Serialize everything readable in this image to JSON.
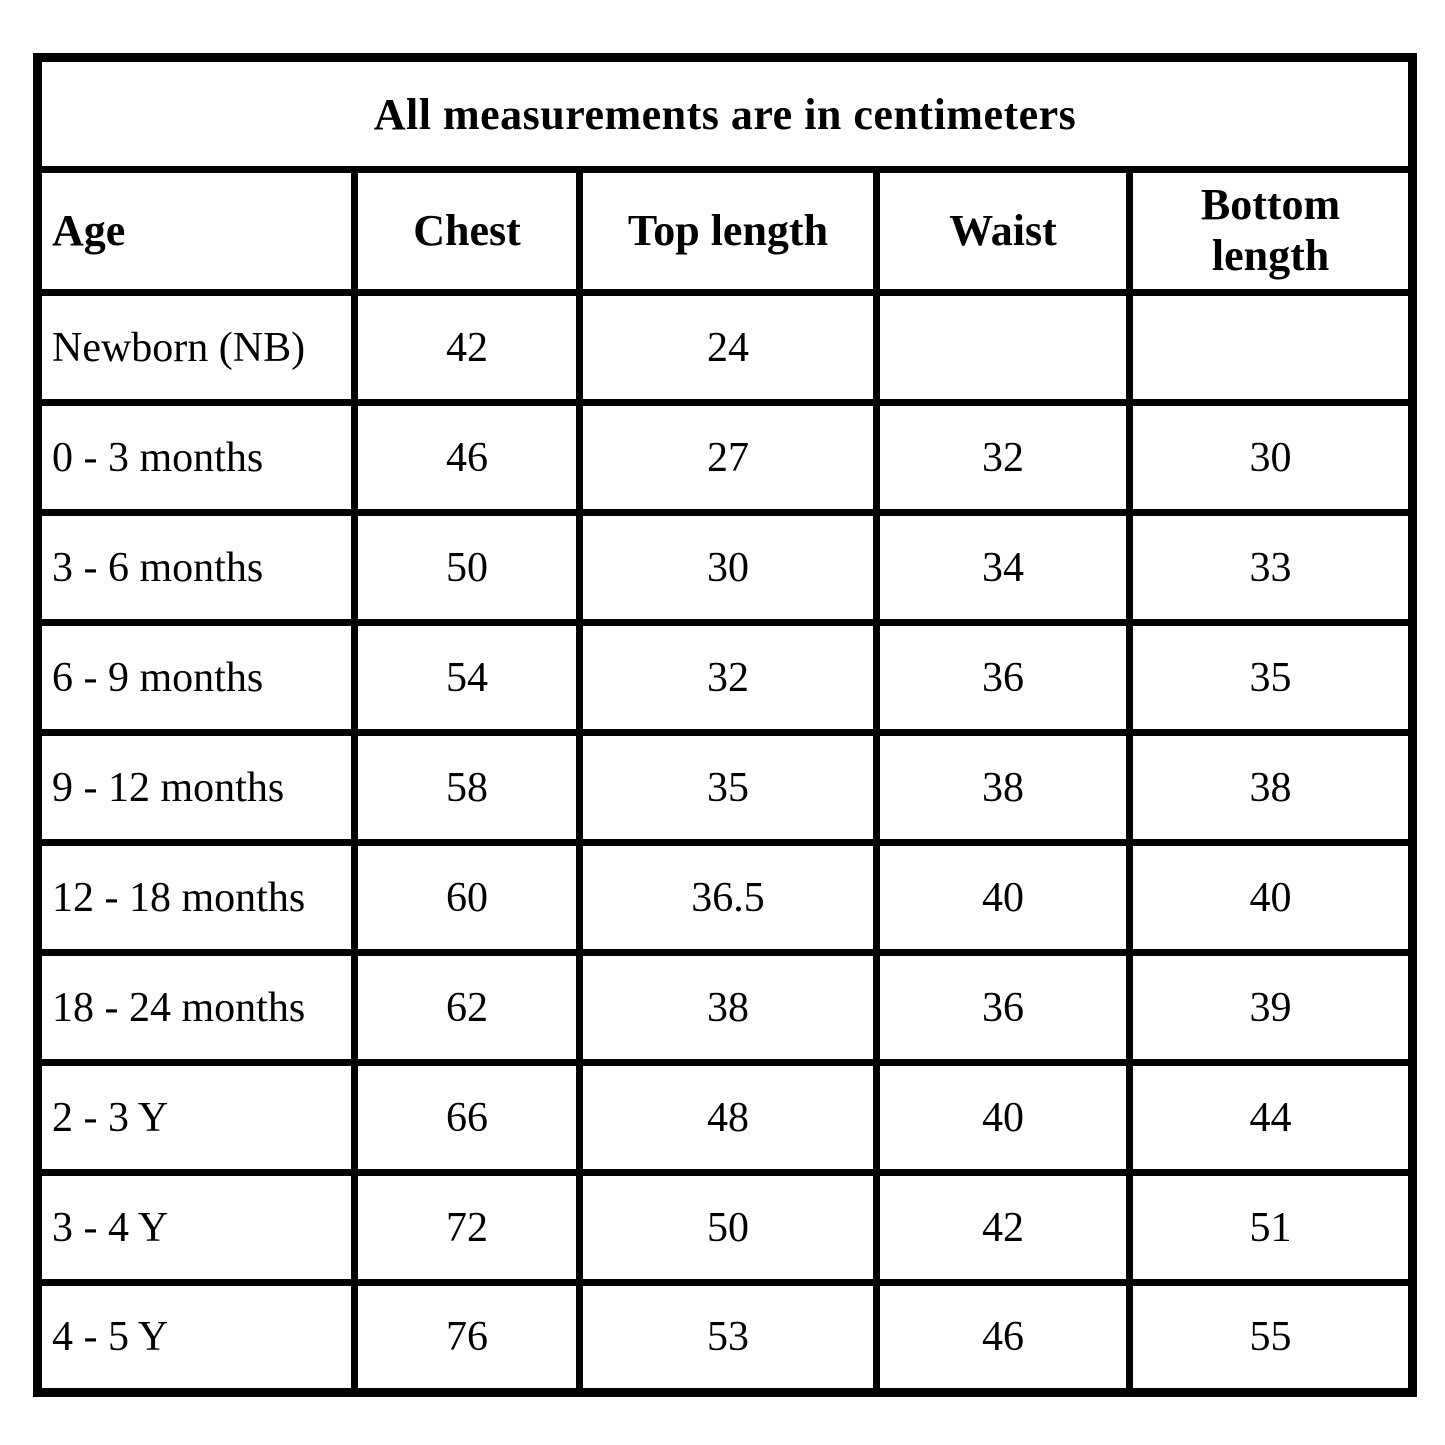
{
  "page": {
    "background_color": "#ffffff",
    "border_color": "#000000",
    "text_color": "#000000"
  },
  "size_chart": {
    "title": "All measurements are in centimeters",
    "columns": [
      "Age",
      "Chest",
      "Top length",
      "Waist",
      "Bottom length"
    ],
    "rows": [
      {
        "age": "Newborn (NB)",
        "chest": "42",
        "top_length": "24",
        "waist": "",
        "bottom_length": ""
      },
      {
        "age": "0 - 3 months",
        "chest": "46",
        "top_length": "27",
        "waist": "32",
        "bottom_length": "30"
      },
      {
        "age": "3 - 6 months",
        "chest": "50",
        "top_length": "30",
        "waist": "34",
        "bottom_length": "33"
      },
      {
        "age": "6 - 9 months",
        "chest": "54",
        "top_length": "32",
        "waist": "36",
        "bottom_length": "35"
      },
      {
        "age": "9 - 12 months",
        "chest": "58",
        "top_length": "35",
        "waist": "38",
        "bottom_length": "38"
      },
      {
        "age": "12 - 18 months",
        "chest": "60",
        "top_length": "36.5",
        "waist": "40",
        "bottom_length": "40"
      },
      {
        "age": "18 - 24 months",
        "chest": "62",
        "top_length": "38",
        "waist": "36",
        "bottom_length": "39"
      },
      {
        "age": "2 - 3 Y",
        "chest": "66",
        "top_length": "48",
        "waist": "40",
        "bottom_length": "44"
      },
      {
        "age": "3 - 4 Y",
        "chest": "72",
        "top_length": "50",
        "waist": "42",
        "bottom_length": "51"
      },
      {
        "age": "4 - 5 Y",
        "chest": "76",
        "top_length": "53",
        "waist": "46",
        "bottom_length": "55"
      }
    ]
  }
}
